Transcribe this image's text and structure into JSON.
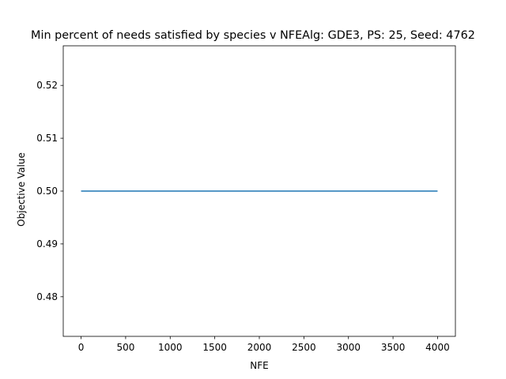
{
  "chart_data": {
    "type": "line",
    "title": "Min percent of needs satisfied by species v NFEAlg: GDE3, PS: 25, Seed: 4762",
    "xlabel": "NFE",
    "ylabel": "Objective Value",
    "xlim": [
      -200,
      4200
    ],
    "ylim": [
      0.4725,
      0.5275
    ],
    "xticks": [
      0,
      500,
      1000,
      1500,
      2000,
      2500,
      3000,
      3500,
      4000
    ],
    "xtick_labels": [
      "0",
      "500",
      "1000",
      "1500",
      "2000",
      "2500",
      "3000",
      "3500",
      "4000"
    ],
    "yticks": [
      0.48,
      0.49,
      0.5,
      0.51,
      0.52
    ],
    "ytick_labels": [
      "0.48",
      "0.49",
      "0.50",
      "0.51",
      "0.52"
    ],
    "grid": false,
    "series": [
      {
        "color": "#1f77b4",
        "x": [
          0,
          4000
        ],
        "y": [
          0.5,
          0.5
        ]
      }
    ]
  }
}
